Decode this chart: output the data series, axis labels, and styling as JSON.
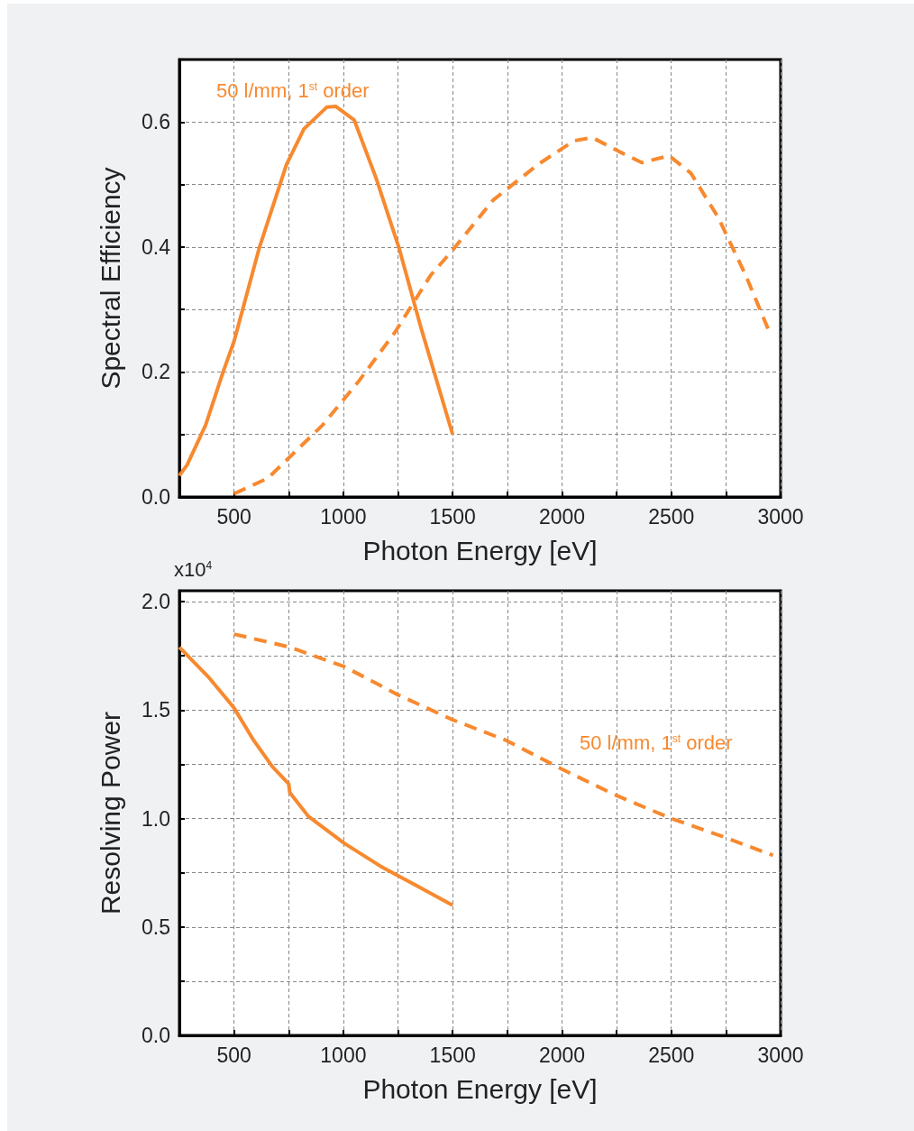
{
  "chart_data": [
    {
      "type": "line",
      "xlabel": "Photon Energy [eV]",
      "ylabel": "Spectral Efficiency",
      "xlim": [
        250,
        3000
      ],
      "ylim": [
        0,
        0.7
      ],
      "xticks": [
        {
          "value": 250,
          "label": null
        },
        500,
        {
          "value": 750,
          "label": null
        },
        1000,
        {
          "value": 1250,
          "label": null
        },
        1500,
        {
          "value": 1750,
          "label": null
        },
        2000,
        {
          "value": 2250,
          "label": null
        },
        2500,
        {
          "value": 2750,
          "label": null
        },
        3000
      ],
      "yticks": [
        {
          "value": 0,
          "label": "0.0"
        },
        {
          "value": 0.1,
          "label": null
        },
        0.2,
        {
          "value": 0.3,
          "label": null
        },
        0.4,
        {
          "value": 0.5,
          "label": null
        },
        0.6
      ],
      "grid": true,
      "marker": "none",
      "annotations": [
        "50 l/mm, 1$^{st}$ order"
      ],
      "series": [
        {
          "color": "#f7892f",
          "line_style": "solid",
          "x": [
            250,
            285,
            370,
            450,
            500,
            615,
            740,
            820,
            925,
            965,
            1050,
            1150,
            1255,
            1355,
            1500
          ],
          "values": [
            0.034,
            0.051,
            0.115,
            0.2,
            0.249,
            0.398,
            0.532,
            0.589,
            0.624,
            0.625,
            0.603,
            0.51,
            0.398,
            0.271,
            0.1
          ]
        },
        {
          "color": "#f7892f",
          "line_style": "dashed",
          "x": [
            500,
            655,
            905,
            1070,
            1235,
            1400,
            1500,
            1685,
            1890,
            2055,
            2140,
            2260,
            2365,
            2490,
            2590,
            2715,
            2840,
            2950
          ],
          "values": [
            0.005,
            0.03,
            0.115,
            0.185,
            0.263,
            0.355,
            0.395,
            0.475,
            0.532,
            0.57,
            0.575,
            0.553,
            0.535,
            0.546,
            0.518,
            0.447,
            0.355,
            0.263
          ]
        }
      ]
    },
    {
      "type": "line",
      "xlabel": "Photon Energy [eV]",
      "ylabel": "Resolving Power",
      "xlim": [
        250,
        3000
      ],
      "ylim": [
        0,
        2.05
      ],
      "xticks": [
        {
          "value": 250,
          "label": null
        },
        500,
        {
          "value": 750,
          "label": null
        },
        1000,
        {
          "value": 1250,
          "label": null
        },
        1500,
        {
          "value": 1750,
          "label": null
        },
        2000,
        {
          "value": 2250,
          "label": null
        },
        2500,
        {
          "value": 2750,
          "label": null
        },
        3000
      ],
      "yticks": [
        {
          "value": 0,
          "label": "0.0"
        },
        {
          "value": 0.25,
          "label": null
        },
        0.5,
        {
          "value": 0.75,
          "label": null
        },
        {
          "value": 1,
          "label": "1.0"
        },
        {
          "value": 1.25,
          "label": null
        },
        1.5,
        {
          "value": 1.75,
          "label": null
        },
        {
          "value": 2,
          "label": "2.0"
        }
      ],
      "grid": true,
      "marker": "none",
      "annotations": [
        "x10$^{4}$",
        "50 l/mm, 1$^{st}$ order"
      ],
      "series": [
        {
          "color": "#f7892f",
          "line_style": "solid",
          "x": [
            250,
            385,
            500,
            590,
            675,
            750,
            755,
            840,
            1005,
            1170,
            1335,
            1500
          ],
          "values": [
            1.79,
            1.65,
            1.51,
            1.36,
            1.24,
            1.16,
            1.12,
            1.01,
            0.885,
            0.78,
            0.69,
            0.6
          ]
        },
        {
          "color": "#f7892f",
          "line_style": "dashed",
          "x": [
            500,
            755,
            1005,
            1250,
            1500,
            1745,
            1995,
            2240,
            2500,
            2740,
            2965
          ],
          "values": [
            1.85,
            1.79,
            1.7,
            1.57,
            1.455,
            1.36,
            1.23,
            1.11,
            1.0,
            0.915,
            0.83
          ]
        }
      ]
    }
  ]
}
